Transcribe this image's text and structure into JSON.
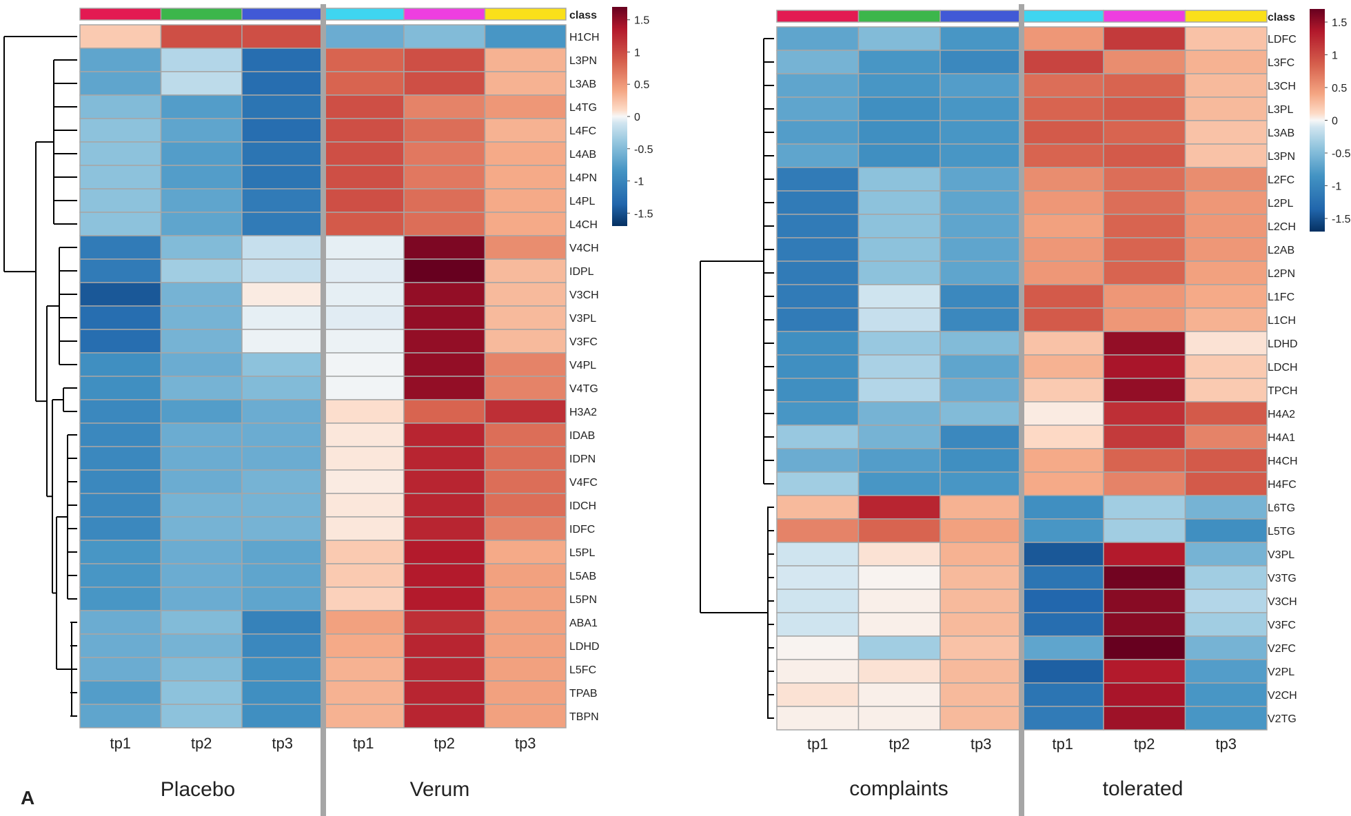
{
  "panel_letter": "A",
  "colors": {
    "class_tp1": "#e31a52",
    "class_tp2": "#3cb64b",
    "class_tp3": "#4159d6",
    "class_tp1b": "#3fd5f0",
    "class_tp2b": "#ee3ee0",
    "class_tp3b": "#fae01a",
    "cell_border": "#a6a6a6",
    "divider": "#a6a6a6",
    "scale": [
      "#053061",
      "#2166ac",
      "#4393c3",
      "#92c5de",
      "#d1e5f0",
      "#f7f7f7",
      "#fddbc7",
      "#f4a582",
      "#d6604d",
      "#b2182b",
      "#67001f"
    ]
  },
  "chart_data": [
    {
      "type": "heatmap",
      "name": "left",
      "class_label": "class",
      "columns": [
        "tp1",
        "tp2",
        "tp3",
        "tp1",
        "tp2",
        "tp3"
      ],
      "groups": [
        "Placebo",
        "Verum"
      ],
      "rows": [
        "H1CH",
        "L3PN",
        "L3AB",
        "L4TG",
        "L4FC",
        "L4AB",
        "L4PN",
        "L4PL",
        "L4CH",
        "V4CH",
        "IDPL",
        "V3CH",
        "V3PL",
        "V3FC",
        "V4PL",
        "V4TG",
        "H3A2",
        "IDAB",
        "IDPN",
        "V4FC",
        "IDCH",
        "IDFC",
        "L5PL",
        "L5AB",
        "L5PN",
        "ABA1",
        "LDHD",
        "L5FC",
        "TPAB",
        "TBPN"
      ],
      "values": [
        [
          0.45,
          1.1,
          1.1,
          -0.85,
          -0.75,
          -1.0
        ],
        [
          -0.9,
          -0.5,
          -1.3,
          1.0,
          1.1,
          0.6
        ],
        [
          -0.9,
          -0.45,
          -1.3,
          1.0,
          1.1,
          0.6
        ],
        [
          -0.75,
          -0.95,
          -1.25,
          1.1,
          0.85,
          0.75
        ],
        [
          -0.7,
          -0.9,
          -1.3,
          1.1,
          0.95,
          0.6
        ],
        [
          -0.7,
          -0.95,
          -1.25,
          1.1,
          0.9,
          0.65
        ],
        [
          -0.7,
          -0.95,
          -1.25,
          1.1,
          0.9,
          0.65
        ],
        [
          -0.7,
          -0.9,
          -1.2,
          1.1,
          0.95,
          0.65
        ],
        [
          -0.7,
          -0.9,
          -1.2,
          1.05,
          0.95,
          0.65
        ],
        [
          -1.2,
          -0.75,
          -0.4,
          -0.15,
          1.6,
          0.8
        ],
        [
          -1.2,
          -0.6,
          -0.4,
          -0.2,
          1.7,
          0.55
        ],
        [
          -1.45,
          -0.8,
          0.15,
          -0.15,
          1.5,
          0.55
        ],
        [
          -1.3,
          -0.8,
          -0.15,
          -0.2,
          1.5,
          0.55
        ],
        [
          -1.3,
          -0.8,
          -0.1,
          -0.1,
          1.5,
          0.55
        ],
        [
          -1.05,
          -0.85,
          -0.7,
          -0.05,
          1.5,
          0.85
        ],
        [
          -1.05,
          -0.8,
          -0.75,
          -0.05,
          1.5,
          0.85
        ],
        [
          -1.1,
          -0.95,
          -0.85,
          0.3,
          1.0,
          1.25
        ],
        [
          -1.1,
          -0.85,
          -0.85,
          0.2,
          1.3,
          0.95
        ],
        [
          -1.1,
          -0.85,
          -0.85,
          0.2,
          1.3,
          0.95
        ],
        [
          -1.1,
          -0.85,
          -0.8,
          0.15,
          1.3,
          0.95
        ],
        [
          -1.1,
          -0.8,
          -0.8,
          0.2,
          1.3,
          0.95
        ],
        [
          -1.1,
          -0.8,
          -0.8,
          0.2,
          1.3,
          0.85
        ],
        [
          -1.0,
          -0.85,
          -0.9,
          0.45,
          1.35,
          0.65
        ],
        [
          -1.0,
          -0.85,
          -0.9,
          0.45,
          1.35,
          0.7
        ],
        [
          -1.0,
          -0.85,
          -0.9,
          0.4,
          1.35,
          0.7
        ],
        [
          -0.85,
          -0.75,
          -1.15,
          0.7,
          1.25,
          0.7
        ],
        [
          -0.85,
          -0.8,
          -1.1,
          0.65,
          1.3,
          0.7
        ],
        [
          -0.85,
          -0.75,
          -1.05,
          0.6,
          1.3,
          0.7
        ],
        [
          -0.95,
          -0.7,
          -1.05,
          0.6,
          1.3,
          0.7
        ],
        [
          -0.9,
          -0.7,
          -1.05,
          0.6,
          1.3,
          0.7
        ]
      ],
      "legend": {
        "title": "",
        "ticks": [
          "1.5",
          "1",
          "0.5",
          "0",
          "-0.5",
          "-1",
          "-1.5"
        ],
        "range": [
          -1.7,
          1.7
        ]
      }
    },
    {
      "type": "heatmap",
      "name": "right",
      "class_label": "class",
      "columns": [
        "tp1",
        "tp2",
        "tp3",
        "tp1",
        "tp2",
        "tp3"
      ],
      "groups": [
        "complaints",
        "tolerated"
      ],
      "rows": [
        "LDFC",
        "L3FC",
        "L3CH",
        "L3PL",
        "L3AB",
        "L3PN",
        "L2FC",
        "L2PL",
        "L2CH",
        "L2AB",
        "L2PN",
        "L1FC",
        "L1CH",
        "LDHD",
        "LDCH",
        "TPCH",
        "H4A2",
        "H4A1",
        "H4CH",
        "H4FC",
        "L6TG",
        "L5TG",
        "V3PL",
        "V3TG",
        "V3CH",
        "V3FC",
        "V2FC",
        "V2PL",
        "V2CH",
        "V2TG"
      ],
      "values": [
        [
          -0.9,
          -0.75,
          -1.0,
          0.75,
          1.2,
          0.5
        ],
        [
          -0.8,
          -1.0,
          -1.1,
          1.15,
          0.8,
          0.6
        ],
        [
          -0.9,
          -1.0,
          -0.95,
          0.95,
          1.0,
          0.55
        ],
        [
          -0.9,
          -1.05,
          -1.0,
          1.0,
          1.05,
          0.55
        ],
        [
          -0.95,
          -1.05,
          -1.0,
          1.05,
          1.0,
          0.5
        ],
        [
          -0.9,
          -1.05,
          -1.0,
          1.0,
          1.05,
          0.5
        ],
        [
          -1.2,
          -0.7,
          -0.9,
          0.8,
          0.95,
          0.8
        ],
        [
          -1.2,
          -0.7,
          -0.9,
          0.75,
          0.95,
          0.75
        ],
        [
          -1.2,
          -0.7,
          -0.9,
          0.7,
          1.0,
          0.75
        ],
        [
          -1.2,
          -0.7,
          -0.9,
          0.75,
          1.0,
          0.75
        ],
        [
          -1.2,
          -0.7,
          -0.9,
          0.75,
          1.0,
          0.7
        ],
        [
          -1.2,
          -0.35,
          -1.1,
          1.05,
          0.75,
          0.65
        ],
        [
          -1.2,
          -0.4,
          -1.1,
          1.05,
          0.75,
          0.6
        ],
        [
          -1.05,
          -0.65,
          -0.75,
          0.5,
          1.5,
          0.25
        ],
        [
          -1.05,
          -0.55,
          -0.9,
          0.6,
          1.4,
          0.45
        ],
        [
          -1.05,
          -0.5,
          -0.85,
          0.45,
          1.5,
          0.45
        ],
        [
          -1.0,
          -0.8,
          -0.75,
          0.15,
          1.25,
          1.05
        ],
        [
          -0.65,
          -0.8,
          -1.1,
          0.35,
          1.2,
          0.85
        ],
        [
          -0.85,
          -0.95,
          -1.05,
          0.65,
          1.0,
          1.05
        ],
        [
          -0.6,
          -1.0,
          -1.0,
          0.65,
          0.85,
          1.05
        ],
        [
          0.55,
          1.3,
          0.6,
          -1.05,
          -0.6,
          -0.8
        ],
        [
          0.85,
          1.0,
          0.7,
          -1.0,
          -0.6,
          -1.05
        ],
        [
          -0.35,
          0.25,
          0.6,
          -1.45,
          1.35,
          -0.8
        ],
        [
          -0.3,
          0.05,
          0.55,
          -1.25,
          1.65,
          -0.6
        ],
        [
          -0.35,
          0.1,
          0.55,
          -1.35,
          1.55,
          -0.5
        ],
        [
          -0.35,
          0.1,
          0.55,
          -1.3,
          1.55,
          -0.6
        ],
        [
          0.05,
          -0.6,
          0.5,
          -0.9,
          1.7,
          -0.8
        ],
        [
          0.1,
          0.25,
          0.55,
          -1.4,
          1.35,
          -0.95
        ],
        [
          0.25,
          0.1,
          0.55,
          -1.25,
          1.4,
          -1.0
        ],
        [
          0.1,
          0.1,
          0.55,
          -1.2,
          1.45,
          -1.0
        ]
      ],
      "legend": {
        "title": "",
        "ticks": [
          "1.5",
          "1",
          "0.5",
          "0",
          "-0.5",
          "-1",
          "-1.5"
        ],
        "range": [
          -1.7,
          1.7
        ]
      }
    }
  ]
}
